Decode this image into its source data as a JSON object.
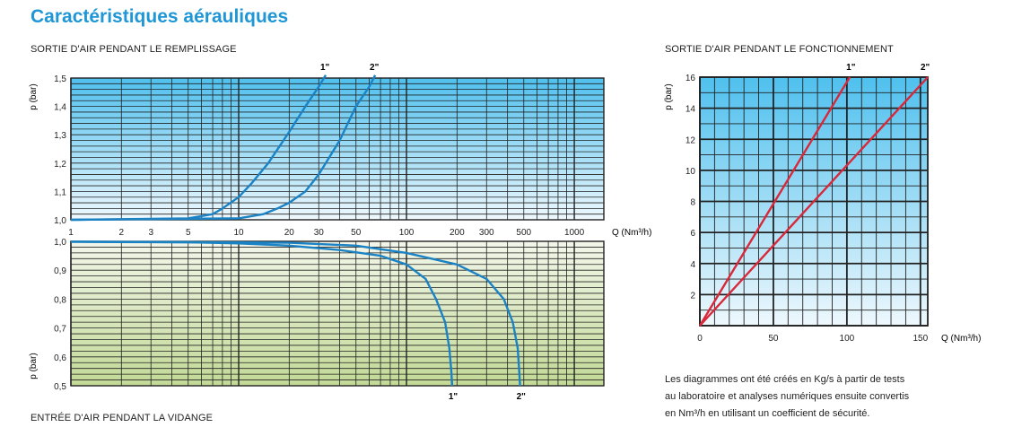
{
  "title": "Caractéristiques aérauliques",
  "charts": {
    "fill": {
      "caption": "SORTIE D'AIR PENDANT LE REMPLISSAGE",
      "ylabel": "p (bar)",
      "yticks": [
        "1,5",
        "1,4",
        "1,3",
        "1,2",
        "1,1",
        "1,0"
      ],
      "series_labels": [
        "1\"",
        "2\""
      ]
    },
    "shared_x": {
      "ticks": [
        "1",
        "2",
        "3",
        "5",
        "10",
        "20",
        "30",
        "50",
        "100",
        "200",
        "300",
        "500",
        "1000"
      ],
      "label": "Q (Nm³/h)"
    },
    "drain": {
      "caption": "ENTRÉE D'AIR PENDANT LA VIDANGE",
      "ylabel": "p (bar)",
      "yticks": [
        "1,0",
        "0,9",
        "0,8",
        "0,7",
        "0,6",
        "0,5"
      ],
      "series_labels": [
        "1\"",
        "2\""
      ]
    },
    "operation": {
      "caption": "SORTIE D'AIR PENDANT LE FONCTIONNEMENT",
      "ylabel": "p (bar)",
      "yticks": [
        "16",
        "14",
        "12",
        "10",
        "8",
        "6",
        "4",
        "2"
      ],
      "xticks": [
        "0",
        "50",
        "100",
        "150"
      ],
      "xlabel": "Q (Nm³/h)",
      "series_labels": [
        "1\"",
        "2\""
      ]
    }
  },
  "note": [
    "Les diagrammes ont été créés en Kg/s à partir de tests",
    "au laboratoire et analyses numériques ensuite convertis",
    "en Nm³/h en utilisant un coefficient de sécurité."
  ],
  "colors": {
    "title": "#1f96d6",
    "curve_blue": "#1b82c4",
    "curve_red": "#d8283a",
    "bg_top": "#4fc0ee",
    "bg_bottom_blue": "#eef8fd",
    "bg_green_top": "#f2f6ea",
    "bg_green_bottom": "#c2d996"
  },
  "chart_data": [
    {
      "type": "line",
      "title": "SORTIE D'AIR PENDANT LE REMPLISSAGE",
      "xscale": "log",
      "xlim": [
        1,
        1500
      ],
      "ylim": [
        1.0,
        1.5
      ],
      "xlabel": "Q (Nm³/h)",
      "ylabel": "p (bar)",
      "grid": true,
      "series": [
        {
          "name": "1\"",
          "points": [
            [
              1,
              1.0
            ],
            [
              5,
              1.005
            ],
            [
              7,
              1.02
            ],
            [
              8,
              1.04
            ],
            [
              10,
              1.08
            ],
            [
              12,
              1.13
            ],
            [
              15,
              1.2
            ],
            [
              20,
              1.31
            ],
            [
              25,
              1.4
            ],
            [
              30,
              1.47
            ],
            [
              33,
              1.51
            ]
          ]
        },
        {
          "name": "2\"",
          "points": [
            [
              1,
              1.0
            ],
            [
              10,
              1.005
            ],
            [
              14,
              1.02
            ],
            [
              17,
              1.04
            ],
            [
              20,
              1.06
            ],
            [
              25,
              1.1
            ],
            [
              30,
              1.16
            ],
            [
              40,
              1.28
            ],
            [
              50,
              1.4
            ],
            [
              60,
              1.47
            ],
            [
              65,
              1.51
            ]
          ]
        }
      ]
    },
    {
      "type": "line",
      "title": "ENTRÉE D'AIR PENDANT LA VIDANGE",
      "xscale": "log",
      "xlim": [
        1,
        1500
      ],
      "ylim": [
        0.5,
        1.0
      ],
      "xlabel": "Q (Nm³/h)",
      "ylabel": "p (bar)",
      "grid": true,
      "series": [
        {
          "name": "1\"",
          "points": [
            [
              1,
              0.998
            ],
            [
              5,
              0.997
            ],
            [
              10,
              0.993
            ],
            [
              20,
              0.985
            ],
            [
              40,
              0.97
            ],
            [
              70,
              0.95
            ],
            [
              100,
              0.92
            ],
            [
              130,
              0.87
            ],
            [
              150,
              0.8
            ],
            [
              170,
              0.72
            ],
            [
              180,
              0.63
            ],
            [
              185,
              0.55
            ],
            [
              187,
              0.5
            ]
          ]
        },
        {
          "name": "2\"",
          "points": [
            [
              1,
              0.999
            ],
            [
              20,
              0.995
            ],
            [
              50,
              0.985
            ],
            [
              100,
              0.96
            ],
            [
              200,
              0.92
            ],
            [
              300,
              0.87
            ],
            [
              380,
              0.8
            ],
            [
              430,
              0.72
            ],
            [
              460,
              0.63
            ],
            [
              470,
              0.55
            ],
            [
              475,
              0.5
            ]
          ]
        }
      ]
    },
    {
      "type": "line",
      "title": "SORTIE D'AIR PENDANT LE FONCTIONNEMENT",
      "xlim": [
        0,
        155
      ],
      "ylim": [
        0,
        16
      ],
      "xlabel": "Q (Nm³/h)",
      "ylabel": "p (bar)",
      "grid": true,
      "series": [
        {
          "name": "1\"",
          "points": [
            [
              0,
              0
            ],
            [
              102,
              16
            ]
          ]
        },
        {
          "name": "2\"",
          "points": [
            [
              0,
              0
            ],
            [
              155,
              16
            ]
          ]
        }
      ]
    }
  ]
}
